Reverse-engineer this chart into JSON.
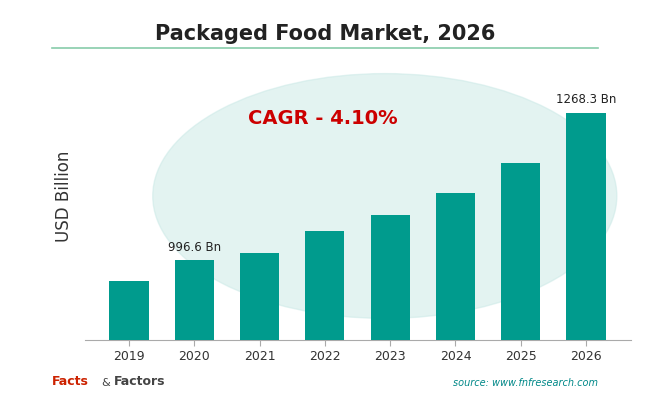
{
  "title": "Packaged Food Market, 2026",
  "years": [
    2019,
    2020,
    2021,
    2022,
    2023,
    2024,
    2025,
    2026
  ],
  "values": [
    958.0,
    996.6,
    1010.0,
    1050.0,
    1080.0,
    1120.0,
    1175.0,
    1268.3
  ],
  "bar_color": "#009B8D",
  "bar_edge_color": "#009B8D",
  "ylabel": "USD Billion",
  "title_fontsize": 15,
  "ylabel_fontsize": 12,
  "background_color": "#FFFFFF",
  "plot_bg_color": "#FFFFFF",
  "cagr_text": "CAGR - 4.10%",
  "cagr_color": "#CC0000",
  "cagr_fontsize": 14,
  "label_2020": "996.6 Bn",
  "label_2026": "1268.3 Bn",
  "source_text": "source: www.fnfresearch.com",
  "watermark_color": "#C8E8E5",
  "tick_label_color": "#333333",
  "ylim_min": 850,
  "ylim_max": 1380
}
